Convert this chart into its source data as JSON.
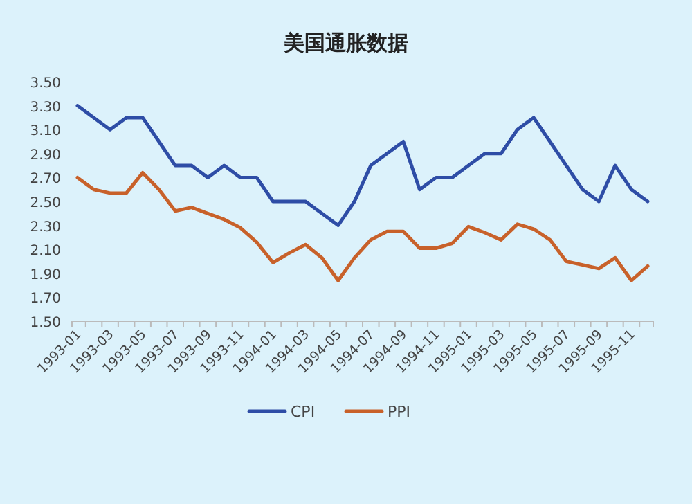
{
  "chart_data": {
    "type": "line",
    "title": "美国通胀数据",
    "categories": [
      "1993-01",
      null,
      "1993-03",
      null,
      "1993-05",
      null,
      "1993-07",
      null,
      "1993-09",
      null,
      "1993-11",
      null,
      "1994-01",
      null,
      "1994-03",
      null,
      "1994-05",
      null,
      "1994-07",
      null,
      "1994-09",
      null,
      "1994-11",
      null,
      "1995-01",
      null,
      "1995-03",
      null,
      "1995-05",
      null,
      "1995-07",
      null,
      "1995-09",
      null,
      "1995-11",
      null
    ],
    "series": [
      {
        "name": "CPI",
        "color": "#2e4da6",
        "values": [
          3.3,
          3.2,
          3.1,
          3.2,
          3.2,
          3.0,
          2.8,
          2.8,
          2.7,
          2.8,
          2.7,
          2.7,
          2.5,
          2.5,
          2.5,
          2.4,
          2.3,
          2.5,
          2.8,
          2.9,
          3.0,
          2.6,
          2.7,
          2.7,
          2.8,
          2.9,
          2.9,
          3.1,
          3.2,
          3.0,
          2.8,
          2.6,
          2.5,
          2.8,
          2.6,
          2.5
        ]
      },
      {
        "name": "PPI",
        "color": "#c8612a",
        "values": [
          2.7,
          2.6,
          2.57,
          2.57,
          2.74,
          2.6,
          2.42,
          2.45,
          2.4,
          2.35,
          2.28,
          2.16,
          1.99,
          2.07,
          2.14,
          2.03,
          1.84,
          2.03,
          2.18,
          2.25,
          2.25,
          2.11,
          2.11,
          2.15,
          2.29,
          2.24,
          2.18,
          2.31,
          2.27,
          2.18,
          2.0,
          1.97,
          1.94,
          2.03,
          1.84,
          1.96
        ]
      }
    ],
    "ylim": [
      1.5,
      3.5
    ],
    "yticks": [
      {
        "value": 1.5,
        "label": "1.50"
      },
      {
        "value": 1.7,
        "label": "1.70"
      },
      {
        "value": 1.9,
        "label": "1.90"
      },
      {
        "value": 2.1,
        "label": "2.10"
      },
      {
        "value": 2.3,
        "label": "2.30"
      },
      {
        "value": 2.5,
        "label": "2.50"
      },
      {
        "value": 2.7,
        "label": "2.70"
      },
      {
        "value": 2.9,
        "label": "2.90"
      },
      {
        "value": 3.1,
        "label": "3.10"
      },
      {
        "value": 3.3,
        "label": "3.30"
      },
      {
        "value": 3.5,
        "label": "3.50"
      }
    ],
    "legend": "bottom",
    "marker": "none",
    "line_style": "solid"
  }
}
